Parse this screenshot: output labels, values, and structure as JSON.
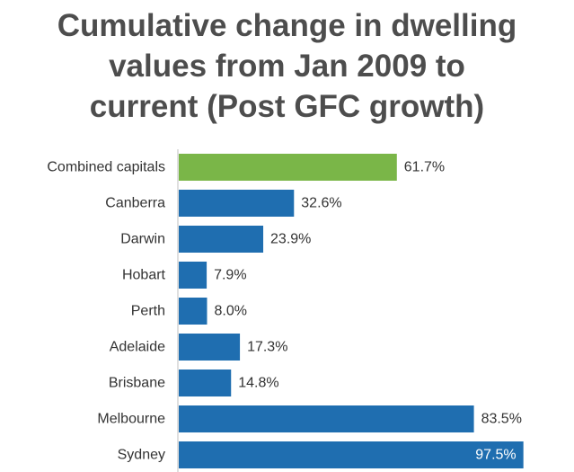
{
  "chart_data": {
    "type": "bar",
    "orientation": "horizontal",
    "title_lines": [
      "Cumulative change in dwelling",
      "values from Jan 2009 to",
      "current (Post GFC growth)"
    ],
    "categories": [
      "Combined capitals",
      "Canberra",
      "Darwin",
      "Hobart",
      "Perth",
      "Adelaide",
      "Brisbane",
      "Melbourne",
      "Sydney"
    ],
    "values": [
      61.7,
      32.6,
      23.9,
      7.9,
      8.0,
      17.3,
      14.8,
      83.5,
      97.5
    ],
    "value_labels": [
      "61.7%",
      "32.6%",
      "23.9%",
      "7.9%",
      "8.0%",
      "17.3%",
      "14.8%",
      "83.5%",
      "97.5%"
    ],
    "colors": {
      "highlight": "#7ab648",
      "default": "#1f6eb0"
    },
    "highlight_category": "Combined capitals",
    "xlim": [
      0,
      100
    ],
    "grid": false,
    "legend": "none"
  }
}
